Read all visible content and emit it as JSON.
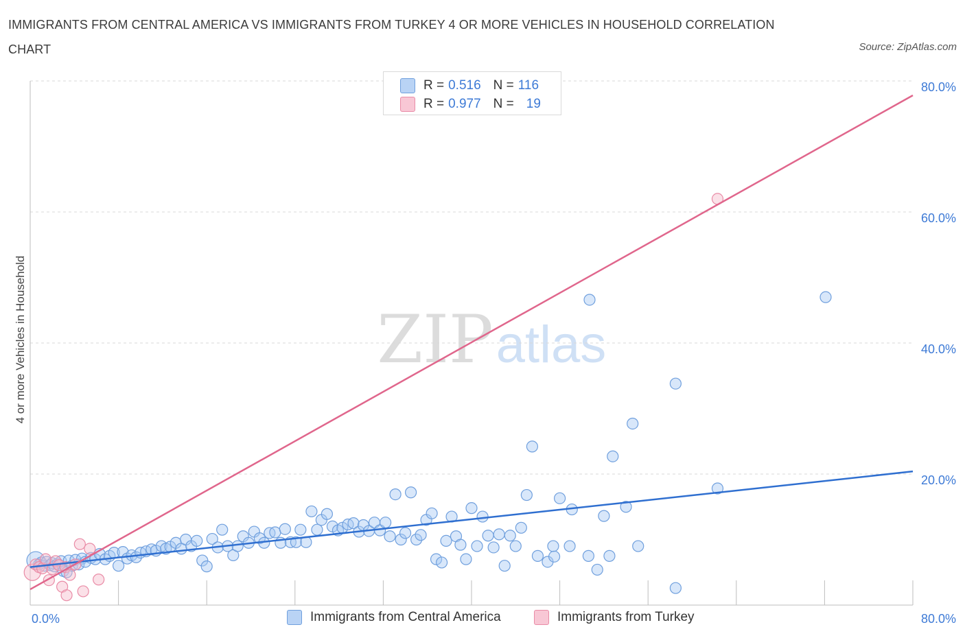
{
  "title": "IMMIGRANTS FROM CENTRAL AMERICA VS IMMIGRANTS FROM TURKEY 4 OR MORE VEHICLES IN HOUSEHOLD CORRELATION CHART",
  "source": "Source: ZipAtlas.com",
  "watermark": {
    "zip": "ZIP",
    "atlas": "atlas"
  },
  "legend": {
    "rows": [
      {
        "r_label": "R =",
        "r_value": "0.516",
        "n_label": "N =",
        "n_value": "116"
      },
      {
        "r_label": "R =",
        "r_value": "0.977",
        "n_label": "N =",
        "n_value": "19"
      }
    ]
  },
  "colors": {
    "blue_fill": "#a9c9f3",
    "blue_stroke": "#6f9fdd",
    "blue_line": "#2f6fd0",
    "pink_fill": "#f6bccb",
    "pink_stroke": "#e98ba6",
    "pink_line": "#e0668c",
    "tick_text": "#3d7ad6",
    "grid": "#d8d8d8"
  },
  "chart_data": {
    "type": "scatter",
    "title": "IMMIGRANTS FROM CENTRAL AMERICA VS IMMIGRANTS FROM TURKEY 4 OR MORE VEHICLES IN HOUSEHOLD CORRELATION CHART",
    "xlabel": "",
    "ylabel": "4 or more Vehicles in Household",
    "xlim": [
      0,
      80
    ],
    "ylim": [
      0,
      80
    ],
    "x_tick_labels": [
      "0.0%",
      "80.0%"
    ],
    "y_tick_labels": [
      "20.0%",
      "40.0%",
      "60.0%",
      "80.0%"
    ],
    "y_ticks": [
      20,
      40,
      60,
      80
    ],
    "grid": true,
    "legend_position": "top-center",
    "series": [
      {
        "name": "Immigrants from Central America",
        "R": 0.516,
        "N": 116,
        "trend": {
          "x": [
            0,
            80
          ],
          "y": [
            5.8,
            20.4
          ]
        },
        "points": [
          [
            0.5,
            6.8
          ],
          [
            0.8,
            6.2
          ],
          [
            1.0,
            6.5
          ],
          [
            1.3,
            6.0
          ],
          [
            1.5,
            6.6
          ],
          [
            1.8,
            6.1
          ],
          [
            2.0,
            6.4
          ],
          [
            2.2,
            5.9
          ],
          [
            2.5,
            6.3
          ],
          [
            2.8,
            6.7
          ],
          [
            3.0,
            5.2
          ],
          [
            3.3,
            5.0
          ],
          [
            3.5,
            6.8
          ],
          [
            3.8,
            6.0
          ],
          [
            4.1,
            6.9
          ],
          [
            4.4,
            6.2
          ],
          [
            4.7,
            7.1
          ],
          [
            5.0,
            6.6
          ],
          [
            5.5,
            7.2
          ],
          [
            5.9,
            7.0
          ],
          [
            6.3,
            7.8
          ],
          [
            6.8,
            7.0
          ],
          [
            7.2,
            7.5
          ],
          [
            7.6,
            8.0
          ],
          [
            8.0,
            6.0
          ],
          [
            8.4,
            8.1
          ],
          [
            8.8,
            7.1
          ],
          [
            9.2,
            7.6
          ],
          [
            9.6,
            7.3
          ],
          [
            10.0,
            8.0
          ],
          [
            10.5,
            8.2
          ],
          [
            11.0,
            8.5
          ],
          [
            11.4,
            8.3
          ],
          [
            11.9,
            9.0
          ],
          [
            12.3,
            8.6
          ],
          [
            12.7,
            8.9
          ],
          [
            13.2,
            9.5
          ],
          [
            13.7,
            8.6
          ],
          [
            14.1,
            10.0
          ],
          [
            14.6,
            9.0
          ],
          [
            15.1,
            9.8
          ],
          [
            15.6,
            6.8
          ],
          [
            16.0,
            5.9
          ],
          [
            16.5,
            10.1
          ],
          [
            17.0,
            8.8
          ],
          [
            17.4,
            11.5
          ],
          [
            17.9,
            9.0
          ],
          [
            18.4,
            7.6
          ],
          [
            18.8,
            9.0
          ],
          [
            19.3,
            10.5
          ],
          [
            19.8,
            9.5
          ],
          [
            20.3,
            11.2
          ],
          [
            20.8,
            10.2
          ],
          [
            21.2,
            9.5
          ],
          [
            21.7,
            11.0
          ],
          [
            22.2,
            11.1
          ],
          [
            22.7,
            9.5
          ],
          [
            23.1,
            11.6
          ],
          [
            23.6,
            9.6
          ],
          [
            24.1,
            9.6
          ],
          [
            24.5,
            11.5
          ],
          [
            25.0,
            9.6
          ],
          [
            25.5,
            14.3
          ],
          [
            26.0,
            11.5
          ],
          [
            26.4,
            13.0
          ],
          [
            26.9,
            13.9
          ],
          [
            27.4,
            12.0
          ],
          [
            27.9,
            11.4
          ],
          [
            28.3,
            11.8
          ],
          [
            28.8,
            12.3
          ],
          [
            29.3,
            12.5
          ],
          [
            29.8,
            11.2
          ],
          [
            30.2,
            12.2
          ],
          [
            30.7,
            11.3
          ],
          [
            31.2,
            12.6
          ],
          [
            31.7,
            11.4
          ],
          [
            32.2,
            12.6
          ],
          [
            32.6,
            10.5
          ],
          [
            33.1,
            16.9
          ],
          [
            33.6,
            10.0
          ],
          [
            34.0,
            11.0
          ],
          [
            34.5,
            17.2
          ],
          [
            35.0,
            10.0
          ],
          [
            35.4,
            10.7
          ],
          [
            35.9,
            13.0
          ],
          [
            36.4,
            14.0
          ],
          [
            36.8,
            7.0
          ],
          [
            37.3,
            6.5
          ],
          [
            37.7,
            9.8
          ],
          [
            38.2,
            13.5
          ],
          [
            38.6,
            10.5
          ],
          [
            39.0,
            9.2
          ],
          [
            39.5,
            7.0
          ],
          [
            40.0,
            14.8
          ],
          [
            40.5,
            9.0
          ],
          [
            41.0,
            13.5
          ],
          [
            41.5,
            10.6
          ],
          [
            42.0,
            8.8
          ],
          [
            42.5,
            10.8
          ],
          [
            43.0,
            6.0
          ],
          [
            43.5,
            10.6
          ],
          [
            44.0,
            9.0
          ],
          [
            44.5,
            11.8
          ],
          [
            45.0,
            16.8
          ],
          [
            45.5,
            24.2
          ],
          [
            46.0,
            7.5
          ],
          [
            46.9,
            6.6
          ],
          [
            47.4,
            9.0
          ],
          [
            47.5,
            7.4
          ],
          [
            48.0,
            16.3
          ],
          [
            48.9,
            9.0
          ],
          [
            49.1,
            14.6
          ],
          [
            50.6,
            7.5
          ],
          [
            50.7,
            46.6
          ],
          [
            51.4,
            5.4
          ],
          [
            52.0,
            13.6
          ],
          [
            52.5,
            7.5
          ],
          [
            52.8,
            22.7
          ],
          [
            54.0,
            15.0
          ],
          [
            54.6,
            27.7
          ],
          [
            55.1,
            9.0
          ],
          [
            58.5,
            33.8
          ],
          [
            58.5,
            2.6
          ],
          [
            62.3,
            17.8
          ],
          [
            72.1,
            47.0
          ]
        ],
        "sizes_note": "mostly regular markers; a larger marker at the origin"
      },
      {
        "name": "Immigrants from Turkey",
        "R": 0.977,
        "N": 19,
        "trend": {
          "x": [
            0,
            80
          ],
          "y": [
            2.4,
            77.8
          ]
        },
        "points": [
          [
            0.2,
            5.0
          ],
          [
            0.5,
            6.2
          ],
          [
            0.8,
            5.8
          ],
          [
            1.1,
            5.6
          ],
          [
            1.4,
            7.0
          ],
          [
            1.7,
            3.8
          ],
          [
            2.0,
            5.5
          ],
          [
            2.3,
            6.7
          ],
          [
            2.6,
            6.1
          ],
          [
            2.9,
            2.8
          ],
          [
            3.2,
            5.8
          ],
          [
            3.3,
            1.5
          ],
          [
            3.6,
            4.6
          ],
          [
            4.1,
            6.2
          ],
          [
            4.5,
            9.3
          ],
          [
            4.8,
            2.1
          ],
          [
            5.4,
            8.6
          ],
          [
            6.2,
            3.9
          ],
          [
            62.3,
            62.0
          ]
        ]
      }
    ]
  },
  "bottom_legend": [
    "Immigrants from Central America",
    "Immigrants from Turkey"
  ]
}
